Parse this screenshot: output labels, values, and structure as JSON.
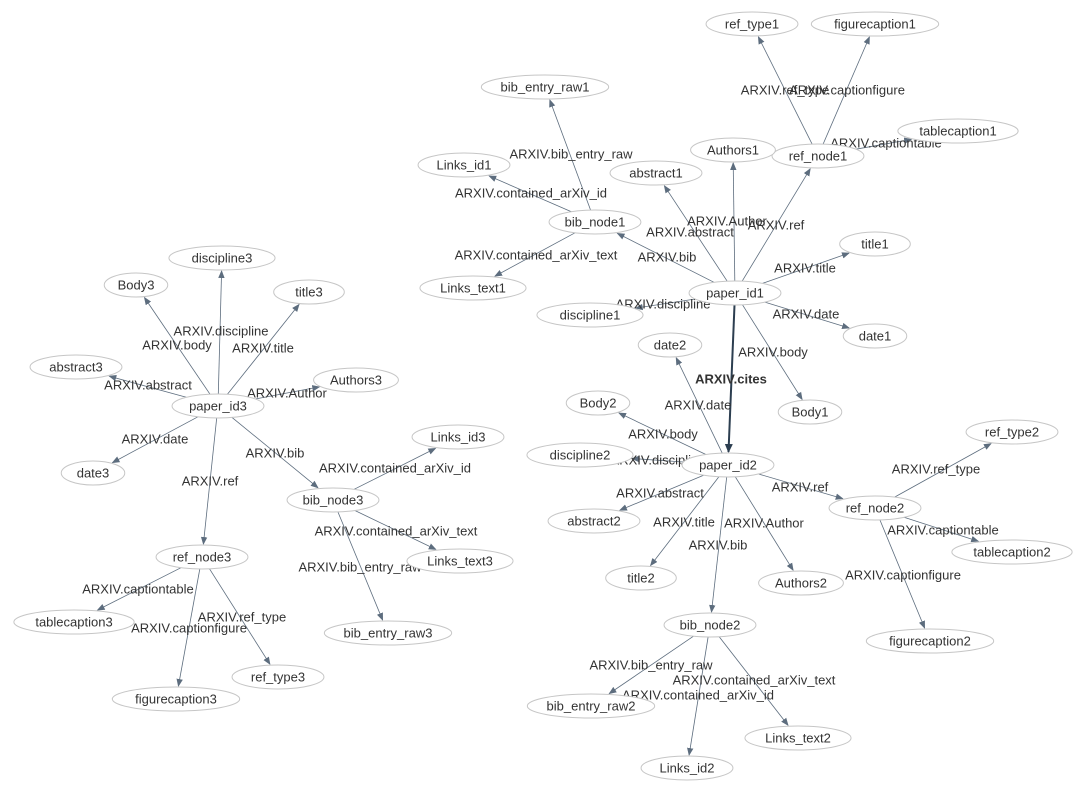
{
  "nodes": [
    {
      "id": "paper_id1",
      "label": "paper_id1"
    },
    {
      "id": "paper_id2",
      "label": "paper_id2"
    },
    {
      "id": "paper_id3",
      "label": "paper_id3"
    },
    {
      "id": "ref_type1",
      "label": "ref_type1"
    },
    {
      "id": "figurecaption1",
      "label": "figurecaption1"
    },
    {
      "id": "tablecaption1",
      "label": "tablecaption1"
    },
    {
      "id": "ref_node1",
      "label": "ref_node1"
    },
    {
      "id": "bib_entry_raw1",
      "label": "bib_entry_raw1"
    },
    {
      "id": "Links_id1",
      "label": "Links_id1"
    },
    {
      "id": "Authors1",
      "label": "Authors1"
    },
    {
      "id": "abstract1",
      "label": "abstract1"
    },
    {
      "id": "bib_node1",
      "label": "bib_node1"
    },
    {
      "id": "title1",
      "label": "title1"
    },
    {
      "id": "Links_text1",
      "label": "Links_text1"
    },
    {
      "id": "discipline1",
      "label": "discipline1"
    },
    {
      "id": "date1",
      "label": "date1"
    },
    {
      "id": "Body1",
      "label": "Body1"
    },
    {
      "id": "date2",
      "label": "date2"
    },
    {
      "id": "Body2",
      "label": "Body2"
    },
    {
      "id": "discipline2",
      "label": "discipline2"
    },
    {
      "id": "abstract2",
      "label": "abstract2"
    },
    {
      "id": "title2",
      "label": "title2"
    },
    {
      "id": "Authors2",
      "label": "Authors2"
    },
    {
      "id": "bib_node2",
      "label": "bib_node2"
    },
    {
      "id": "bib_entry_raw2",
      "label": "bib_entry_raw2"
    },
    {
      "id": "Links_id2",
      "label": "Links_id2"
    },
    {
      "id": "Links_text2",
      "label": "Links_text2"
    },
    {
      "id": "ref_node2",
      "label": "ref_node2"
    },
    {
      "id": "ref_type2",
      "label": "ref_type2"
    },
    {
      "id": "tablecaption2",
      "label": "tablecaption2"
    },
    {
      "id": "figurecaption2",
      "label": "figurecaption2"
    },
    {
      "id": "discipline3",
      "label": "discipline3"
    },
    {
      "id": "Body3",
      "label": "Body3"
    },
    {
      "id": "title3",
      "label": "title3"
    },
    {
      "id": "abstract3",
      "label": "abstract3"
    },
    {
      "id": "Authors3",
      "label": "Authors3"
    },
    {
      "id": "date3",
      "label": "date3"
    },
    {
      "id": "Links_id3",
      "label": "Links_id3"
    },
    {
      "id": "bib_node3",
      "label": "bib_node3"
    },
    {
      "id": "Links_text3",
      "label": "Links_text3"
    },
    {
      "id": "ref_node3",
      "label": "ref_node3"
    },
    {
      "id": "bib_entry_raw3",
      "label": "bib_entry_raw3"
    },
    {
      "id": "tablecaption3",
      "label": "tablecaption3"
    },
    {
      "id": "figurecaption3",
      "label": "figurecaption3"
    },
    {
      "id": "ref_type3",
      "label": "ref_type3"
    }
  ],
  "edges": [
    {
      "from": "paper_id1",
      "to": "paper_id2",
      "label": "ARXIV.cites",
      "bold": true
    },
    {
      "from": "paper_id1",
      "to": "ref_node1",
      "label": "ARXIV.ref"
    },
    {
      "from": "paper_id1",
      "to": "Authors1",
      "label": "ARXIV.Author"
    },
    {
      "from": "paper_id1",
      "to": "abstract1",
      "label": "ARXIV.abstract"
    },
    {
      "from": "paper_id1",
      "to": "bib_node1",
      "label": "ARXIV.bib"
    },
    {
      "from": "paper_id1",
      "to": "title1",
      "label": "ARXIV.title"
    },
    {
      "from": "paper_id1",
      "to": "discipline1",
      "label": "ARXIV.discipline"
    },
    {
      "from": "paper_id1",
      "to": "date1",
      "label": "ARXIV.date"
    },
    {
      "from": "paper_id1",
      "to": "Body1",
      "label": "ARXIV.body"
    },
    {
      "from": "ref_node1",
      "to": "ref_type1",
      "label": "ARXIV.ref_type"
    },
    {
      "from": "ref_node1",
      "to": "figurecaption1",
      "label": "ARXIV.captionfigure"
    },
    {
      "from": "ref_node1",
      "to": "tablecaption1",
      "label": "ARXIV.captiontable"
    },
    {
      "from": "bib_node1",
      "to": "bib_entry_raw1",
      "label": "ARXIV.bib_entry_raw"
    },
    {
      "from": "bib_node1",
      "to": "Links_id1",
      "label": "ARXIV.contained_arXiv_id"
    },
    {
      "from": "bib_node1",
      "to": "Links_text1",
      "label": "ARXIV.contained_arXiv_text"
    },
    {
      "from": "paper_id2",
      "to": "date2",
      "label": "ARXIV.date"
    },
    {
      "from": "paper_id2",
      "to": "Body2",
      "label": "ARXIV.body"
    },
    {
      "from": "paper_id2",
      "to": "discipline2",
      "label": "ARXIV.discipline"
    },
    {
      "from": "paper_id2",
      "to": "abstract2",
      "label": "ARXIV.abstract"
    },
    {
      "from": "paper_id2",
      "to": "title2",
      "label": "ARXIV.title"
    },
    {
      "from": "paper_id2",
      "to": "Authors2",
      "label": "ARXIV.Author"
    },
    {
      "from": "paper_id2",
      "to": "bib_node2",
      "label": "ARXIV.bib"
    },
    {
      "from": "paper_id2",
      "to": "ref_node2",
      "label": "ARXIV.ref"
    },
    {
      "from": "ref_node2",
      "to": "ref_type2",
      "label": "ARXIV.ref_type"
    },
    {
      "from": "ref_node2",
      "to": "tablecaption2",
      "label": "ARXIV.captiontable"
    },
    {
      "from": "ref_node2",
      "to": "figurecaption2",
      "label": "ARXIV.captionfigure"
    },
    {
      "from": "bib_node2",
      "to": "bib_entry_raw2",
      "label": "ARXIV.bib_entry_raw"
    },
    {
      "from": "bib_node2",
      "to": "Links_id2",
      "label": "ARXIV.contained_arXiv_id"
    },
    {
      "from": "bib_node2",
      "to": "Links_text2",
      "label": "ARXIV.contained_arXiv_text"
    },
    {
      "from": "paper_id3",
      "to": "discipline3",
      "label": "ARXIV.discipline"
    },
    {
      "from": "paper_id3",
      "to": "Body3",
      "label": "ARXIV.body"
    },
    {
      "from": "paper_id3",
      "to": "title3",
      "label": "ARXIV.title"
    },
    {
      "from": "paper_id3",
      "to": "abstract3",
      "label": "ARXIV.abstract"
    },
    {
      "from": "paper_id3",
      "to": "Authors3",
      "label": "ARXIV.Author"
    },
    {
      "from": "paper_id3",
      "to": "date3",
      "label": "ARXIV.date"
    },
    {
      "from": "paper_id3",
      "to": "bib_node3",
      "label": "ARXIV.bib"
    },
    {
      "from": "paper_id3",
      "to": "ref_node3",
      "label": "ARXIV.ref"
    },
    {
      "from": "bib_node3",
      "to": "Links_id3",
      "label": "ARXIV.contained_arXiv_id"
    },
    {
      "from": "bib_node3",
      "to": "Links_text3",
      "label": "ARXIV.contained_arXiv_text"
    },
    {
      "from": "bib_node3",
      "to": "bib_entry_raw3",
      "label": "ARXIV.bib_entry_raw"
    },
    {
      "from": "ref_node3",
      "to": "tablecaption3",
      "label": "ARXIV.captiontable"
    },
    {
      "from": "ref_node3",
      "to": "figurecaption3",
      "label": "ARXIV.captionfigure"
    },
    {
      "from": "ref_node3",
      "to": "ref_type3",
      "label": "ARXIV.ref_type"
    }
  ]
}
